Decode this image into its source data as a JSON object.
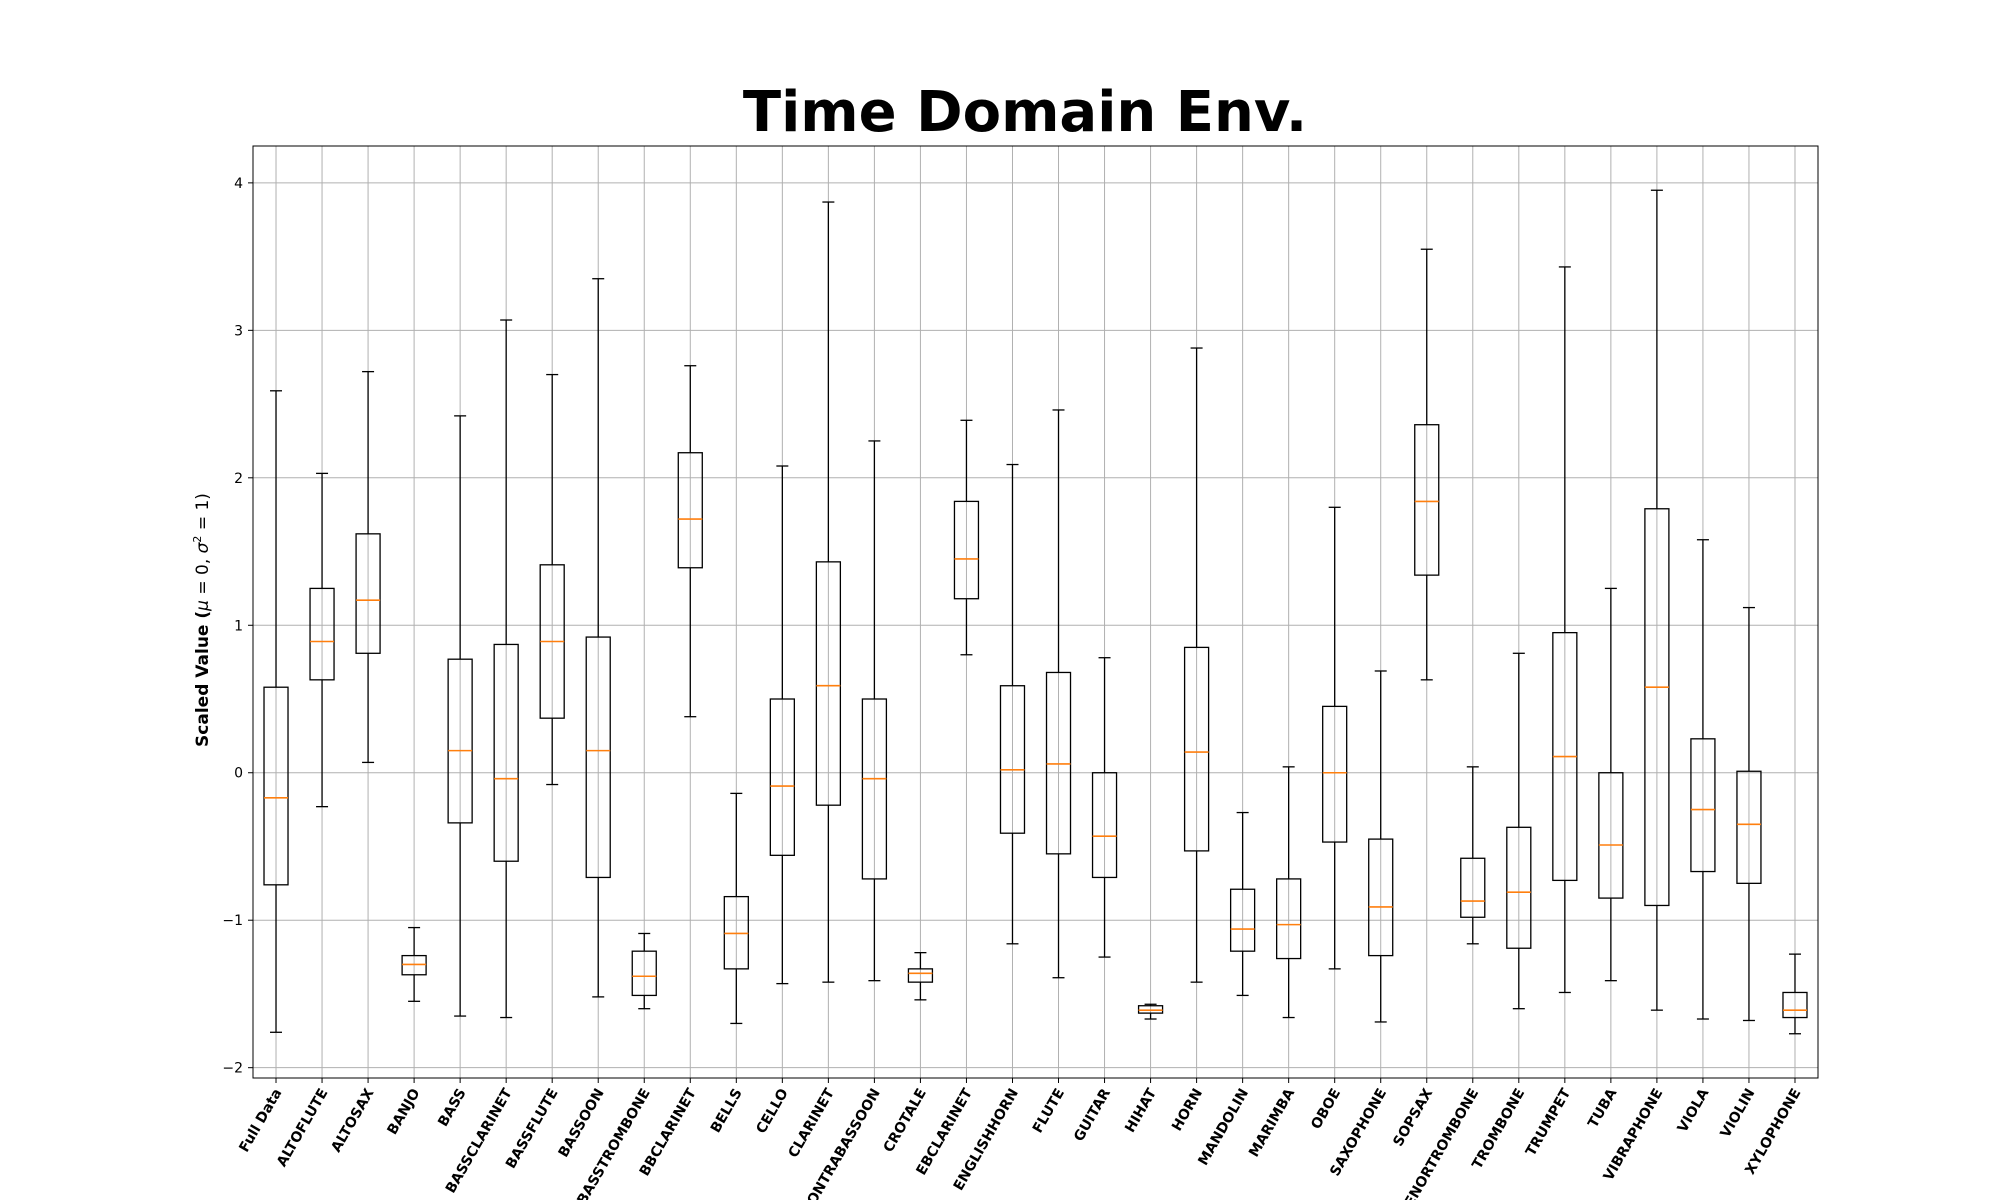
{
  "chart_data": {
    "type": "box",
    "title": "Time Domain Env.",
    "ylabel": "Scaled Value (μ = 0, σ² = 1)",
    "ylabel_parts": {
      "prefix": "Scaled Value (",
      "mu": "μ",
      "mu_eq": " = 0, ",
      "sigma": "σ",
      "sigma_sup": "2",
      "sigma_eq": " = 1)"
    },
    "xlabel": "",
    "ylim": [
      -2.07,
      4.25
    ],
    "yticks": [
      -2,
      -1,
      0,
      1,
      2,
      3,
      4
    ],
    "ytick_labels": [
      "−2",
      "−1",
      "0",
      "1",
      "2",
      "3",
      "4"
    ],
    "grid": true,
    "colors": {
      "box": "#000000",
      "median": "#ff7f0e",
      "grid": "#b0b0b0"
    },
    "categories": [
      "Full Data",
      "ALTOFLUTE",
      "ALTOSAX",
      "BANJO",
      "BASS",
      "BASSCLARINET",
      "BASSFLUTE",
      "BASSOON",
      "BASSTROMBONE",
      "BBCLARINET",
      "BELLS",
      "CELLO",
      "CLARINET",
      "CONTRABASSOON",
      "CROTALE",
      "EBCLARINET",
      "ENGLISHHORN",
      "FLUTE",
      "GUITAR",
      "HIHAT",
      "HORN",
      "MANDOLIN",
      "MARIMBA",
      "OBOE",
      "SAXOPHONE",
      "SOPSAX",
      "TENORTROMBONE",
      "TROMBONE",
      "TRUMPET",
      "TUBA",
      "VIBRAPHONE",
      "VIOLA",
      "VIOLIN",
      "XYLOPHONE"
    ],
    "boxes": [
      {
        "whislo": -1.76,
        "q1": -0.76,
        "med": -0.17,
        "q3": 0.58,
        "whishi": 2.59
      },
      {
        "whislo": -0.23,
        "q1": 0.63,
        "med": 0.89,
        "q3": 1.25,
        "whishi": 2.03
      },
      {
        "whislo": 0.07,
        "q1": 0.81,
        "med": 1.17,
        "q3": 1.62,
        "whishi": 2.72
      },
      {
        "whislo": -1.55,
        "q1": -1.37,
        "med": -1.3,
        "q3": -1.24,
        "whishi": -1.05
      },
      {
        "whislo": -1.65,
        "q1": -0.34,
        "med": 0.15,
        "q3": 0.77,
        "whishi": 2.42
      },
      {
        "whislo": -1.66,
        "q1": -0.6,
        "med": -0.04,
        "q3": 0.87,
        "whishi": 3.07
      },
      {
        "whislo": -0.08,
        "q1": 0.37,
        "med": 0.89,
        "q3": 1.41,
        "whishi": 2.7
      },
      {
        "whislo": -1.52,
        "q1": -0.71,
        "med": 0.15,
        "q3": 0.92,
        "whishi": 3.35
      },
      {
        "whislo": -1.6,
        "q1": -1.51,
        "med": -1.38,
        "q3": -1.21,
        "whishi": -1.09
      },
      {
        "whislo": 0.38,
        "q1": 1.39,
        "med": 1.72,
        "q3": 2.17,
        "whishi": 2.76
      },
      {
        "whislo": -1.7,
        "q1": -1.33,
        "med": -1.09,
        "q3": -0.84,
        "whishi": -0.14
      },
      {
        "whislo": -1.43,
        "q1": -0.56,
        "med": -0.09,
        "q3": 0.5,
        "whishi": 2.08
      },
      {
        "whislo": -1.42,
        "q1": -0.22,
        "med": 0.59,
        "q3": 1.43,
        "whishi": 3.87
      },
      {
        "whislo": -1.41,
        "q1": -0.72,
        "med": -0.04,
        "q3": 0.5,
        "whishi": 2.25
      },
      {
        "whislo": -1.54,
        "q1": -1.42,
        "med": -1.36,
        "q3": -1.33,
        "whishi": -1.22
      },
      {
        "whislo": 0.8,
        "q1": 1.18,
        "med": 1.45,
        "q3": 1.84,
        "whishi": 2.39
      },
      {
        "whislo": -1.16,
        "q1": -0.41,
        "med": 0.02,
        "q3": 0.59,
        "whishi": 2.09
      },
      {
        "whislo": -1.39,
        "q1": -0.55,
        "med": 0.06,
        "q3": 0.68,
        "whishi": 2.46
      },
      {
        "whislo": -1.25,
        "q1": -0.71,
        "med": -0.43,
        "q3": 0.0,
        "whishi": 0.78
      },
      {
        "whislo": -1.67,
        "q1": -1.63,
        "med": -1.61,
        "q3": -1.58,
        "whishi": -1.57
      },
      {
        "whislo": -1.42,
        "q1": -0.53,
        "med": 0.14,
        "q3": 0.85,
        "whishi": 2.88
      },
      {
        "whislo": -1.51,
        "q1": -1.21,
        "med": -1.06,
        "q3": -0.79,
        "whishi": -0.27
      },
      {
        "whislo": -1.66,
        "q1": -1.26,
        "med": -1.03,
        "q3": -0.72,
        "whishi": 0.04
      },
      {
        "whislo": -1.33,
        "q1": -0.47,
        "med": 0.0,
        "q3": 0.45,
        "whishi": 1.8
      },
      {
        "whislo": -1.69,
        "q1": -1.24,
        "med": -0.91,
        "q3": -0.45,
        "whishi": 0.69
      },
      {
        "whislo": 0.63,
        "q1": 1.34,
        "med": 1.84,
        "q3": 2.36,
        "whishi": 3.55
      },
      {
        "whislo": -1.16,
        "q1": -0.98,
        "med": -0.87,
        "q3": -0.58,
        "whishi": 0.04
      },
      {
        "whislo": -1.6,
        "q1": -1.19,
        "med": -0.81,
        "q3": -0.37,
        "whishi": 0.81
      },
      {
        "whislo": -1.49,
        "q1": -0.73,
        "med": 0.11,
        "q3": 0.95,
        "whishi": 3.43
      },
      {
        "whislo": -1.41,
        "q1": -0.85,
        "med": -0.49,
        "q3": 0.0,
        "whishi": 1.25
      },
      {
        "whislo": -1.61,
        "q1": -0.9,
        "med": 0.58,
        "q3": 1.79,
        "whishi": 3.95
      },
      {
        "whislo": -1.67,
        "q1": -0.67,
        "med": -0.25,
        "q3": 0.23,
        "whishi": 1.58
      },
      {
        "whislo": -1.68,
        "q1": -0.75,
        "med": -0.35,
        "q3": 0.01,
        "whishi": 1.12
      },
      {
        "whislo": -1.77,
        "q1": -1.66,
        "med": -1.61,
        "q3": -1.49,
        "whishi": -1.23
      }
    ]
  }
}
